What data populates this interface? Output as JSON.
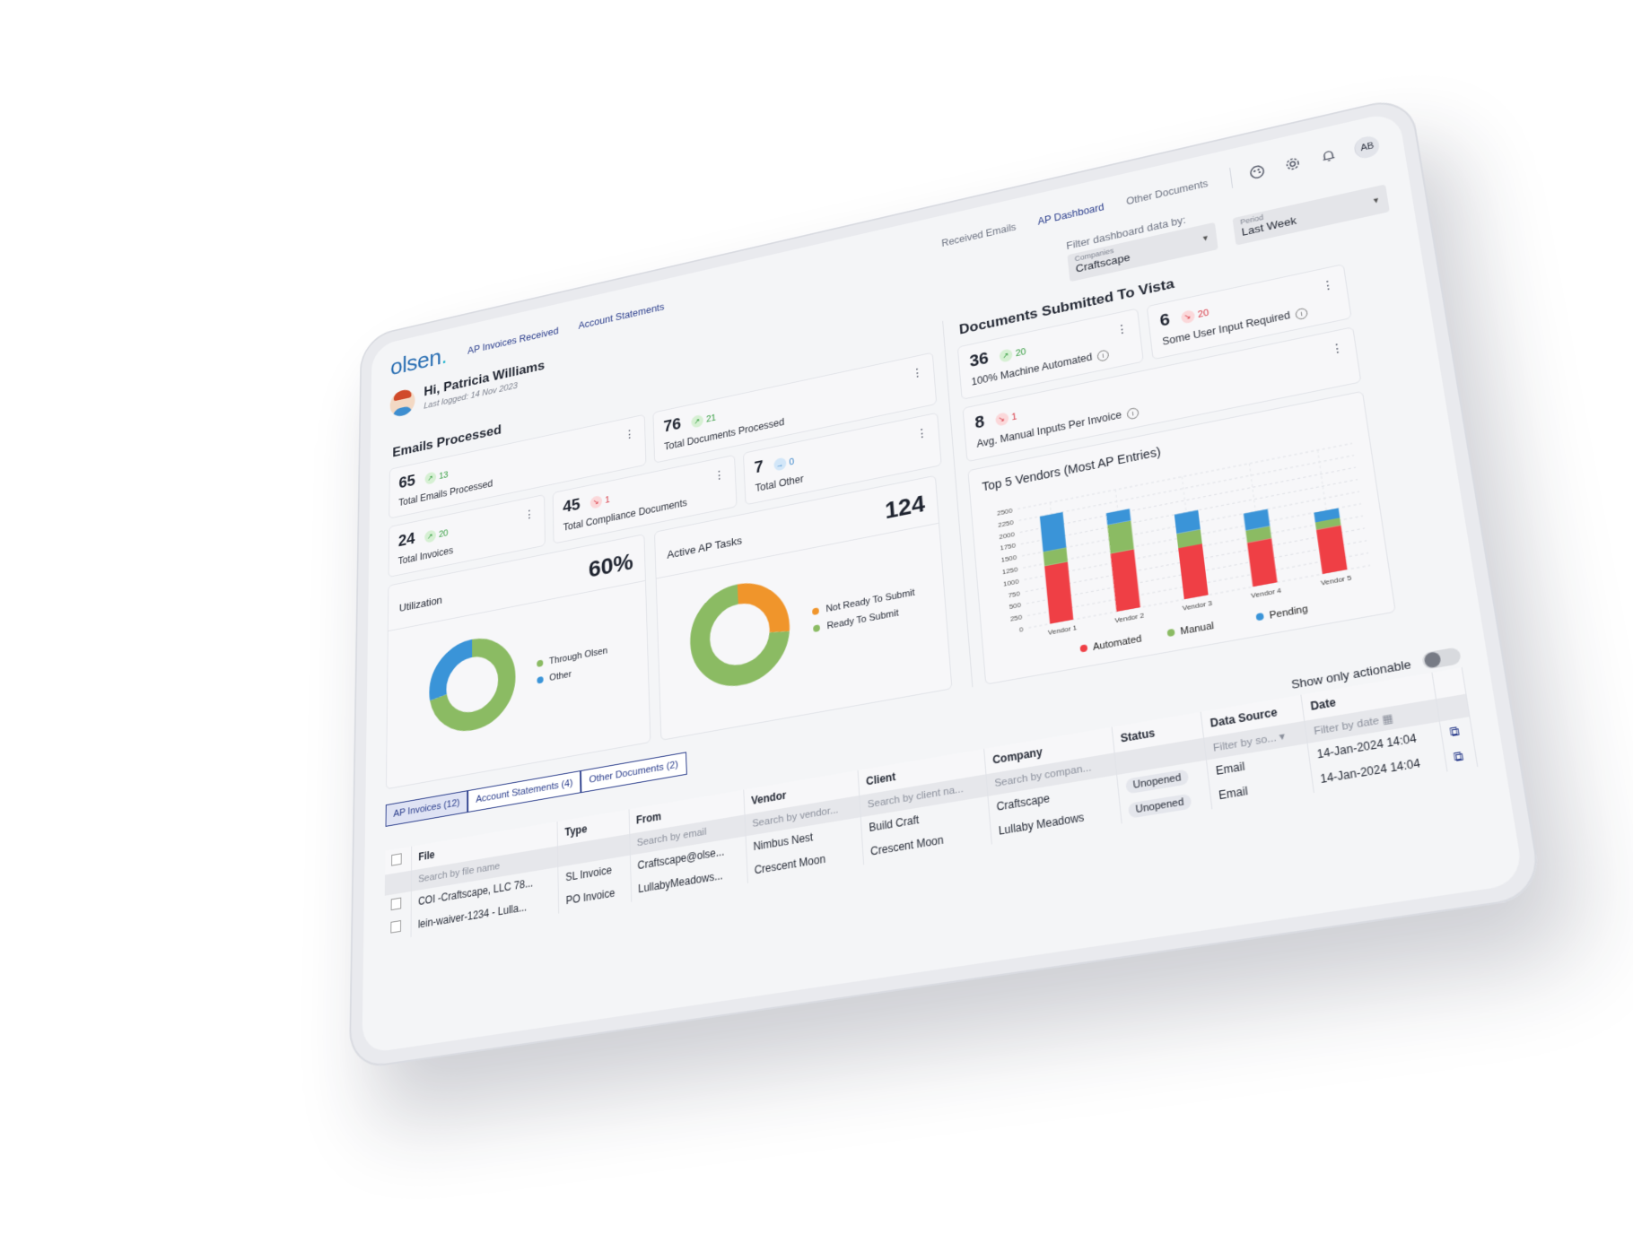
{
  "nav": {
    "logo": "olsen",
    "left_links": [
      "AP Invoices Received",
      "Account Statements"
    ],
    "right_links": [
      "Received Emails",
      "AP Dashboard",
      "Other Documents"
    ],
    "active_right": "AP Dashboard",
    "avatar_initials": "AB"
  },
  "user": {
    "greeting": "Hi, Patricia Williams",
    "last_logged": "Last logged: 14 Nov 2023"
  },
  "filter": {
    "label": "Filter dashboard data by:",
    "companies_label": "Companies",
    "companies_value": "Craftscape",
    "period_label": "Period",
    "period_value": "Last Week"
  },
  "emails": {
    "title": "Emails Processed",
    "kpis": [
      {
        "value": "65",
        "delta": "13",
        "trend": "up",
        "label": "Total Emails Processed"
      },
      {
        "value": "76",
        "delta": "21",
        "trend": "up",
        "label": "Total Documents Processed"
      },
      {
        "value": "24",
        "delta": "20",
        "trend": "up",
        "label": "Total Invoices"
      },
      {
        "value": "45",
        "delta": "1",
        "trend": "down",
        "label": "Total Compliance Documents"
      },
      {
        "value": "7",
        "delta": "0",
        "trend": "flat",
        "label": "Total Other"
      }
    ]
  },
  "vista": {
    "title": "Documents Submitted To Vista",
    "kpis": [
      {
        "value": "36",
        "delta": "20",
        "trend": "up",
        "label": "100% Machine Automated"
      },
      {
        "value": "6",
        "delta": "20",
        "trend": "down",
        "label": "Some User Input Required"
      },
      {
        "value": "8",
        "delta": "1",
        "trend": "down",
        "label": "Avg. Manual Inputs Per Invoice"
      }
    ]
  },
  "utilization": {
    "title": "Utilization",
    "value": "60%",
    "legend": [
      "Through Olsen",
      "Other"
    ],
    "shares": [
      0.72,
      0.28
    ],
    "colors": [
      "#8bbb63",
      "#3a94d8"
    ]
  },
  "tasks": {
    "title": "Active AP Tasks",
    "value": "124",
    "legend": [
      "Not Ready To Submit",
      "Ready To Submit"
    ],
    "shares": [
      0.27,
      0.73
    ],
    "colors": [
      "#f0952b",
      "#8bbb63"
    ]
  },
  "chart_data": {
    "type": "bar",
    "title": "Top 5 Vendors (Most AP Entries)",
    "categories": [
      "Vendor 1",
      "Vendor 2",
      "Vendor 3",
      "Vendor 4",
      "Vendor 5"
    ],
    "series": [
      {
        "name": "Automated",
        "values": [
          1200,
          1200,
          1050,
          900,
          900
        ],
        "color": "#ef3f45"
      },
      {
        "name": "Manual",
        "values": [
          300,
          600,
          300,
          250,
          150
        ],
        "color": "#8bbb63"
      },
      {
        "name": "Pending",
        "values": [
          750,
          250,
          400,
          350,
          200
        ],
        "color": "#3a94d8"
      }
    ],
    "ylim": [
      0,
      2500
    ],
    "yticks": [
      "0",
      "250",
      "500",
      "750",
      "1000",
      "1250",
      "1500",
      "1750",
      "2000",
      "2250",
      "2500"
    ],
    "stacked": true,
    "grid": true,
    "legend_position": "bottom"
  },
  "tabs": [
    "AP Invoices (12)",
    "Account Statements (4)",
    "Other Documents (2)"
  ],
  "table": {
    "actionable_label": "Show only actionable",
    "columns": [
      "File",
      "Type",
      "From",
      "Vendor",
      "Client",
      "Company",
      "Status",
      "Data Source",
      "Date"
    ],
    "filters": [
      "Search by file name",
      "",
      "Search by email",
      "Search by vendor...",
      "Search by client na...",
      "Search by compan...",
      "",
      "Filter by so...",
      "Filter by date"
    ],
    "rows": [
      [
        "COI -Craftscape, LLC 78...",
        "SL Invoice",
        "Craftscape@olse...",
        "Nimbus Nest",
        "Build Craft",
        "Craftscape",
        "Unopened",
        "Email",
        "14-Jan-2024 14:04"
      ],
      [
        "lein-waiver-1234 - Lulla...",
        "PO Invoice",
        "LullabyMeadows...",
        "Crescent Moon",
        "Crescent Moon",
        "Lullaby Meadows",
        "Unopened",
        "Email",
        "14-Jan-2024 14:04"
      ]
    ]
  }
}
